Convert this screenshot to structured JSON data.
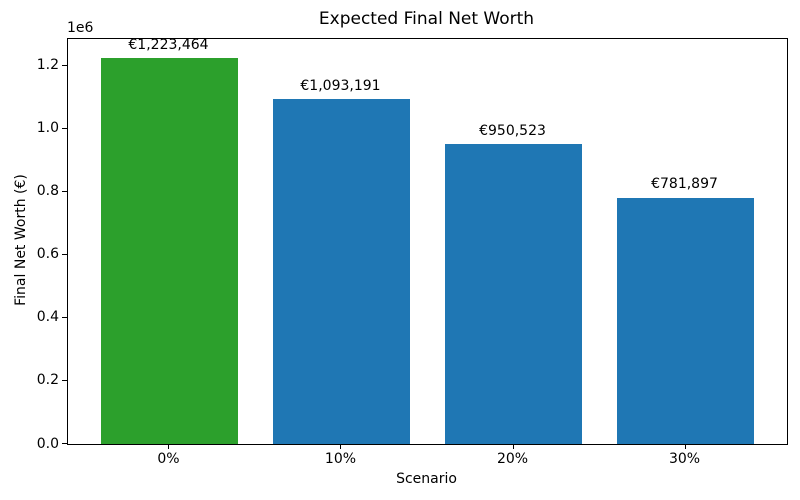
{
  "chart_data": {
    "type": "bar",
    "title": "Expected Final Net Worth",
    "xlabel": "Scenario",
    "ylabel": "Final Net Worth (€)",
    "categories": [
      "0%",
      "10%",
      "20%",
      "30%"
    ],
    "values": [
      1223464,
      1093191,
      950523,
      781897
    ],
    "bar_labels": [
      "€1,223,464",
      "€1,093,191",
      "€950,523",
      "€781,897"
    ],
    "bar_colors": [
      "#2ca02c",
      "#1f77b4",
      "#1f77b4",
      "#1f77b4"
    ],
    "highlight_color": "#2ca02c",
    "default_bar_color": "#1f77b4",
    "bar_width": 0.8,
    "xlim": [
      -0.59,
      3.59
    ],
    "ylim": [
      0,
      1284637
    ],
    "yticks": [
      0,
      200000,
      400000,
      600000,
      800000,
      1000000,
      1200000
    ],
    "ytick_labels": [
      "0.0",
      "0.2",
      "0.4",
      "0.6",
      "0.8",
      "1.0",
      "1.2"
    ],
    "y_offset_text": "1e6",
    "grid": false,
    "legend_position": "none"
  }
}
